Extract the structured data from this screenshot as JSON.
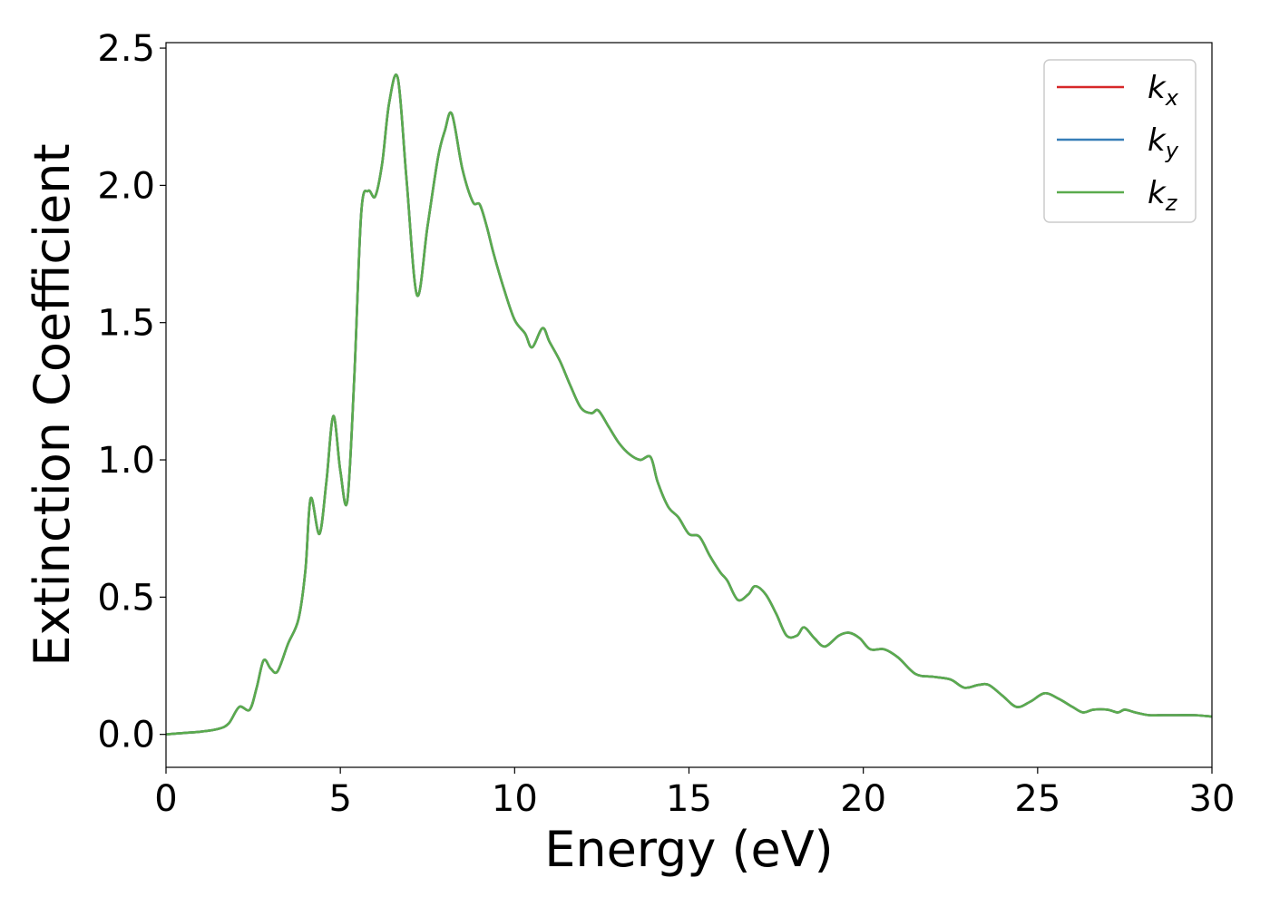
{
  "chart_data": {
    "type": "line",
    "title": "",
    "xlabel": "Energy (eV)",
    "ylabel": "Extinction Coefficient",
    "xlim": [
      0,
      30
    ],
    "ylim": [
      -0.12,
      2.52
    ],
    "xticks": [
      0,
      5,
      10,
      15,
      20,
      25,
      30
    ],
    "xtick_labels": [
      "0",
      "5",
      "10",
      "15",
      "20",
      "25",
      "30"
    ],
    "yticks": [
      0.0,
      0.5,
      1.0,
      1.5,
      2.0,
      2.5
    ],
    "ytick_labels": [
      "0.0",
      "0.5",
      "1.0",
      "1.5",
      "2.0",
      "2.5"
    ],
    "grid": false,
    "legend_position": "top-right",
    "x": [
      0,
      0.5,
      1.0,
      1.5,
      1.8,
      2.1,
      2.4,
      2.6,
      2.8,
      3.0,
      3.2,
      3.5,
      3.8,
      4.0,
      4.15,
      4.4,
      4.6,
      4.8,
      5.0,
      5.2,
      5.4,
      5.6,
      5.8,
      6.0,
      6.2,
      6.4,
      6.65,
      6.9,
      7.2,
      7.5,
      7.8,
      8.0,
      8.2,
      8.5,
      8.8,
      9.0,
      9.2,
      9.4,
      9.7,
      10.0,
      10.3,
      10.5,
      10.8,
      11.0,
      11.3,
      11.6,
      11.9,
      12.2,
      12.4,
      12.7,
      13.0,
      13.3,
      13.6,
      13.9,
      14.1,
      14.4,
      14.7,
      15.0,
      15.3,
      15.6,
      15.9,
      16.1,
      16.4,
      16.7,
      16.9,
      17.2,
      17.5,
      17.8,
      18.1,
      18.3,
      18.6,
      18.9,
      19.3,
      19.6,
      19.9,
      20.2,
      20.6,
      21.0,
      21.5,
      22.0,
      22.5,
      22.9,
      23.3,
      23.6,
      24.0,
      24.4,
      24.8,
      25.2,
      25.6,
      26.0,
      26.3,
      26.6,
      27.0,
      27.3,
      27.5,
      27.8,
      28.2,
      28.6,
      29.0,
      29.5,
      30.0
    ],
    "series": [
      {
        "name": "k_x",
        "color": "#d62728",
        "values": [
          0.0,
          0.005,
          0.01,
          0.02,
          0.04,
          0.1,
          0.09,
          0.17,
          0.27,
          0.24,
          0.23,
          0.33,
          0.42,
          0.6,
          0.86,
          0.73,
          0.92,
          1.16,
          0.96,
          0.85,
          1.3,
          1.9,
          1.98,
          1.96,
          2.08,
          2.3,
          2.39,
          2.02,
          1.6,
          1.85,
          2.1,
          2.2,
          2.26,
          2.06,
          1.94,
          1.93,
          1.85,
          1.75,
          1.62,
          1.51,
          1.46,
          1.41,
          1.48,
          1.43,
          1.36,
          1.27,
          1.19,
          1.17,
          1.18,
          1.12,
          1.06,
          1.02,
          1.0,
          1.01,
          0.92,
          0.83,
          0.79,
          0.73,
          0.72,
          0.65,
          0.59,
          0.56,
          0.49,
          0.51,
          0.54,
          0.51,
          0.44,
          0.36,
          0.36,
          0.39,
          0.35,
          0.32,
          0.36,
          0.37,
          0.35,
          0.31,
          0.31,
          0.28,
          0.22,
          0.21,
          0.2,
          0.17,
          0.18,
          0.18,
          0.14,
          0.1,
          0.12,
          0.15,
          0.13,
          0.1,
          0.08,
          0.09,
          0.09,
          0.08,
          0.09,
          0.08,
          0.07,
          0.07,
          0.07,
          0.07,
          0.065
        ]
      },
      {
        "name": "k_y",
        "color": "#377eb8",
        "values": [
          0.0,
          0.005,
          0.01,
          0.02,
          0.04,
          0.1,
          0.09,
          0.17,
          0.27,
          0.24,
          0.23,
          0.33,
          0.42,
          0.6,
          0.86,
          0.73,
          0.92,
          1.16,
          0.96,
          0.85,
          1.3,
          1.9,
          1.98,
          1.96,
          2.08,
          2.3,
          2.39,
          2.02,
          1.6,
          1.85,
          2.1,
          2.2,
          2.26,
          2.06,
          1.94,
          1.93,
          1.85,
          1.75,
          1.62,
          1.51,
          1.46,
          1.41,
          1.48,
          1.43,
          1.36,
          1.27,
          1.19,
          1.17,
          1.18,
          1.12,
          1.06,
          1.02,
          1.0,
          1.01,
          0.92,
          0.83,
          0.79,
          0.73,
          0.72,
          0.65,
          0.59,
          0.56,
          0.49,
          0.51,
          0.54,
          0.51,
          0.44,
          0.36,
          0.36,
          0.39,
          0.35,
          0.32,
          0.36,
          0.37,
          0.35,
          0.31,
          0.31,
          0.28,
          0.22,
          0.21,
          0.2,
          0.17,
          0.18,
          0.18,
          0.14,
          0.1,
          0.12,
          0.15,
          0.13,
          0.1,
          0.08,
          0.09,
          0.09,
          0.08,
          0.09,
          0.08,
          0.07,
          0.07,
          0.07,
          0.07,
          0.065
        ]
      },
      {
        "name": "k_z",
        "color": "#5aab4e",
        "values": [
          0.0,
          0.005,
          0.01,
          0.02,
          0.04,
          0.1,
          0.09,
          0.17,
          0.27,
          0.24,
          0.23,
          0.33,
          0.42,
          0.6,
          0.86,
          0.73,
          0.92,
          1.16,
          0.96,
          0.85,
          1.3,
          1.9,
          1.98,
          1.96,
          2.08,
          2.3,
          2.39,
          2.02,
          1.6,
          1.85,
          2.1,
          2.2,
          2.26,
          2.06,
          1.94,
          1.93,
          1.85,
          1.75,
          1.62,
          1.51,
          1.46,
          1.41,
          1.48,
          1.43,
          1.36,
          1.27,
          1.19,
          1.17,
          1.18,
          1.12,
          1.06,
          1.02,
          1.0,
          1.01,
          0.92,
          0.83,
          0.79,
          0.73,
          0.72,
          0.65,
          0.59,
          0.56,
          0.49,
          0.51,
          0.54,
          0.51,
          0.44,
          0.36,
          0.36,
          0.39,
          0.35,
          0.32,
          0.36,
          0.37,
          0.35,
          0.31,
          0.31,
          0.28,
          0.22,
          0.21,
          0.2,
          0.17,
          0.18,
          0.18,
          0.14,
          0.1,
          0.12,
          0.15,
          0.13,
          0.1,
          0.08,
          0.09,
          0.09,
          0.08,
          0.09,
          0.08,
          0.07,
          0.07,
          0.07,
          0.07,
          0.065
        ]
      }
    ],
    "legend": [
      {
        "base": "k",
        "sub": "x",
        "color": "#d62728"
      },
      {
        "base": "k",
        "sub": "y",
        "color": "#377eb8"
      },
      {
        "base": "k",
        "sub": "z",
        "color": "#5aab4e"
      }
    ]
  }
}
